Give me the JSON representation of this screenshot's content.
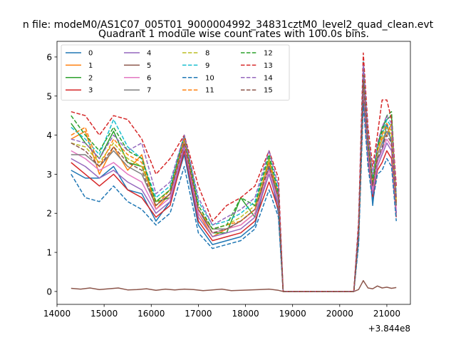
{
  "figure": {
    "suptitle": "n file: modeM0/AS1C07_005T01_9000004992_34831cztM0_level2_quad_clean.evt",
    "title": "Quadrant 1 module wise count rates with 100.0s bins.",
    "x_offset_text": "+3.844e8"
  },
  "chart_data": {
    "type": "line",
    "title": "Quadrant 1 module wise count rates with 100.0s bins.",
    "xlabel": "",
    "ylabel": "",
    "x_offset": 384400000,
    "xlim": [
      14000,
      21500
    ],
    "ylim": [
      -0.33,
      6.4
    ],
    "xticks": [
      14000,
      15000,
      16000,
      17000,
      18000,
      19000,
      20000,
      21000
    ],
    "yticks": [
      0,
      1,
      2,
      3,
      4,
      5,
      6
    ],
    "grid": false,
    "legend_position": "top-left",
    "legend_columns": 4,
    "series": [
      {
        "name": "0",
        "color": "#1f77b4",
        "dash": "solid",
        "x": [
          14300,
          14600,
          14900,
          15200,
          15500,
          15800,
          16100,
          16400,
          16700,
          17000,
          17300,
          17600,
          17900,
          18200,
          18500,
          18700,
          18800,
          19500,
          20300,
          20400,
          20500,
          20600,
          20700,
          20800,
          20900,
          21000,
          21100,
          21200
        ],
        "y": [
          3.1,
          2.9,
          2.9,
          3.2,
          2.6,
          2.5,
          1.8,
          2.3,
          3.5,
          1.7,
          1.2,
          1.3,
          1.4,
          1.7,
          3.2,
          2.0,
          0.0,
          0.0,
          0.0,
          1.3,
          5.5,
          3.7,
          2.2,
          3.4,
          3.6,
          4.3,
          3.8,
          2.0
        ]
      },
      {
        "name": "1",
        "color": "#ff7f0e",
        "dash": "solid",
        "x": [
          14300,
          14600,
          14900,
          15200,
          15500,
          15800,
          16100,
          16400,
          16700,
          17000,
          17300,
          17600,
          17900,
          18200,
          18500,
          18700,
          18800,
          19500,
          20300,
          20400,
          20500,
          20600,
          20700,
          20800,
          20900,
          21000,
          21100,
          21200
        ],
        "y": [
          3.9,
          4.1,
          3.0,
          3.7,
          3.1,
          3.5,
          2.1,
          2.5,
          3.8,
          2.0,
          1.4,
          1.6,
          1.7,
          2.0,
          3.1,
          2.4,
          0.0,
          0.0,
          0.0,
          1.4,
          5.0,
          4.0,
          2.8,
          3.6,
          3.9,
          4.0,
          4.3,
          2.4
        ]
      },
      {
        "name": "2",
        "color": "#2ca02c",
        "dash": "solid",
        "x": [
          14300,
          14600,
          14900,
          15200,
          15500,
          15800,
          16100,
          16400,
          16700,
          17000,
          17300,
          17600,
          17900,
          18200,
          18500,
          18700,
          18800,
          19500,
          20300,
          20400,
          20500,
          20600,
          20700,
          20800,
          20900,
          21000,
          21100,
          21200
        ],
        "y": [
          4.3,
          3.8,
          3.4,
          4.1,
          3.3,
          3.2,
          2.3,
          2.4,
          3.9,
          2.1,
          1.5,
          1.5,
          2.4,
          1.9,
          3.4,
          2.2,
          0.0,
          0.0,
          0.0,
          1.5,
          5.3,
          3.6,
          2.6,
          3.7,
          4.2,
          4.4,
          4.5,
          2.2
        ]
      },
      {
        "name": "3",
        "color": "#d62728",
        "dash": "solid",
        "x": [
          14300,
          14600,
          14900,
          15200,
          15500,
          15800,
          16100,
          16400,
          16700,
          17000,
          17300,
          17600,
          17900,
          18200,
          18500,
          18700,
          18800,
          19500,
          20300,
          20400,
          20500,
          20600,
          20700,
          20800,
          20900,
          21000,
          21100,
          21200
        ],
        "y": [
          3.3,
          3.0,
          2.7,
          3.0,
          2.6,
          2.4,
          1.9,
          2.2,
          3.6,
          1.8,
          1.3,
          1.4,
          1.5,
          1.8,
          2.8,
          2.1,
          0.0,
          0.0,
          0.0,
          1.4,
          5.0,
          3.4,
          2.4,
          3.1,
          3.3,
          3.6,
          3.4,
          1.9
        ]
      },
      {
        "name": "4",
        "color": "#9467bd",
        "dash": "solid",
        "x": [
          14300,
          14600,
          14900,
          15200,
          15500,
          15800,
          16100,
          16400,
          16700,
          17000,
          17300,
          17600,
          17900,
          18200,
          18500,
          18700,
          18800,
          19500,
          20300,
          20400,
          20500,
          20600,
          20700,
          20800,
          20900,
          21000,
          21100,
          21200
        ],
        "y": [
          3.4,
          3.2,
          2.9,
          3.1,
          2.8,
          2.6,
          2.0,
          2.3,
          3.7,
          1.9,
          1.4,
          1.5,
          1.6,
          1.9,
          3.0,
          2.2,
          0.0,
          0.0,
          0.0,
          1.4,
          5.2,
          3.5,
          2.5,
          3.2,
          3.5,
          3.8,
          3.6,
          2.0
        ]
      },
      {
        "name": "5",
        "color": "#8c564b",
        "dash": "solid",
        "x": [
          14300,
          14500,
          14700,
          14900,
          15100,
          15300,
          15500,
          15700,
          15900,
          16100,
          16300,
          16500,
          16700,
          16900,
          17100,
          17300,
          17500,
          17700,
          17900,
          18100,
          18300,
          18500,
          18700,
          18800,
          19500,
          20300,
          20400,
          20500,
          20600,
          20700,
          20800,
          20900,
          21000,
          21100,
          21200
        ],
        "y": [
          0.08,
          0.06,
          0.09,
          0.05,
          0.07,
          0.09,
          0.04,
          0.05,
          0.07,
          0.03,
          0.06,
          0.04,
          0.06,
          0.05,
          0.02,
          0.04,
          0.06,
          0.02,
          0.03,
          0.04,
          0.05,
          0.06,
          0.03,
          0.0,
          0.0,
          0.0,
          0.05,
          0.28,
          0.09,
          0.07,
          0.14,
          0.09,
          0.11,
          0.08,
          0.1
        ]
      },
      {
        "name": "6",
        "color": "#e377c2",
        "dash": "solid",
        "x": [
          14300,
          14600,
          14900,
          15200,
          15500,
          15800,
          16100,
          16400,
          16700,
          17000,
          17300,
          17600,
          17900,
          18200,
          18500,
          18700,
          18800,
          19500,
          20300,
          20400,
          20500,
          20600,
          20700,
          20800,
          20900,
          21000,
          21100,
          21200
        ],
        "y": [
          3.6,
          3.4,
          3.1,
          3.3,
          3.0,
          2.8,
          2.1,
          2.4,
          3.8,
          2.0,
          1.5,
          1.6,
          1.7,
          2.0,
          3.1,
          2.3,
          0.0,
          0.0,
          0.0,
          1.5,
          5.4,
          3.6,
          2.6,
          3.3,
          3.6,
          3.9,
          3.7,
          2.1
        ]
      },
      {
        "name": "7",
        "color": "#7f7f7f",
        "dash": "solid",
        "x": [
          14300,
          14600,
          14900,
          15200,
          15500,
          15800,
          16100,
          16400,
          16700,
          17000,
          17300,
          17600,
          17900,
          18200,
          18500,
          18700,
          18800,
          19500,
          20300,
          20400,
          20500,
          20600,
          20700,
          20800,
          20900,
          21000,
          21100,
          21200
        ],
        "y": [
          3.5,
          3.5,
          3.2,
          3.6,
          3.2,
          3.0,
          2.2,
          2.5,
          3.9,
          2.1,
          1.6,
          1.6,
          1.8,
          2.1,
          3.3,
          2.4,
          0.0,
          0.0,
          0.0,
          1.5,
          5.6,
          3.7,
          2.7,
          3.5,
          3.8,
          4.1,
          3.9,
          2.2
        ]
      },
      {
        "name": "8",
        "color": "#bcbd22",
        "dash": "dashed",
        "x": [
          14300,
          14600,
          14900,
          15200,
          15500,
          15800,
          16100,
          16400,
          16700,
          17000,
          17300,
          17600,
          17900,
          18200,
          18500,
          18700,
          18800,
          19500,
          20300,
          20400,
          20500,
          20600,
          20700,
          20800,
          20900,
          21000,
          21100,
          21200
        ],
        "y": [
          3.8,
          3.7,
          3.3,
          3.8,
          3.4,
          3.2,
          2.3,
          2.6,
          3.9,
          2.2,
          1.6,
          1.7,
          1.9,
          2.2,
          3.4,
          2.5,
          0.0,
          0.0,
          0.0,
          1.6,
          5.7,
          3.9,
          2.8,
          3.6,
          3.9,
          4.2,
          4.0,
          2.3
        ]
      },
      {
        "name": "9",
        "color": "#17becf",
        "dash": "dashed",
        "x": [
          14300,
          14600,
          14900,
          15200,
          15500,
          15800,
          16100,
          16400,
          16700,
          17000,
          17300,
          17600,
          17900,
          18200,
          18500,
          18700,
          18800,
          19500,
          20300,
          20400,
          20500,
          20600,
          20700,
          20800,
          20900,
          21000,
          21100,
          21200
        ],
        "y": [
          4.2,
          3.9,
          3.5,
          4.4,
          3.7,
          3.4,
          2.4,
          2.7,
          4.0,
          2.3,
          1.7,
          1.8,
          2.0,
          2.3,
          3.5,
          2.6,
          0.0,
          0.0,
          0.0,
          1.7,
          5.9,
          4.0,
          2.9,
          3.7,
          4.0,
          4.4,
          4.2,
          2.5
        ]
      },
      {
        "name": "10",
        "color": "#1f77b4",
        "dash": "dashed",
        "x": [
          14300,
          14600,
          14900,
          15200,
          15500,
          15800,
          16100,
          16400,
          16700,
          17000,
          17300,
          17600,
          17900,
          18200,
          18500,
          18700,
          18800,
          19500,
          20300,
          20400,
          20500,
          20600,
          20700,
          20800,
          20900,
          21000,
          21100,
          21200
        ],
        "y": [
          3.0,
          2.4,
          2.3,
          2.7,
          2.3,
          2.1,
          1.7,
          2.0,
          3.2,
          1.5,
          1.1,
          1.2,
          1.3,
          1.6,
          2.6,
          1.9,
          0.0,
          0.0,
          0.0,
          1.2,
          4.8,
          3.2,
          2.3,
          3.0,
          3.1,
          3.4,
          3.2,
          1.8
        ]
      },
      {
        "name": "11",
        "color": "#ff7f0e",
        "dash": "dashed",
        "x": [
          14300,
          14600,
          14900,
          15200,
          15500,
          15800,
          16100,
          16400,
          16700,
          17000,
          17300,
          17600,
          17900,
          18200,
          18500,
          18700,
          18800,
          19500,
          20300,
          20400,
          20500,
          20600,
          20700,
          20800,
          20900,
          21000,
          21100,
          21200
        ],
        "y": [
          4.0,
          4.2,
          3.2,
          3.9,
          3.5,
          3.3,
          2.2,
          2.6,
          3.9,
          2.1,
          1.6,
          1.7,
          1.8,
          2.1,
          3.3,
          2.5,
          0.0,
          0.0,
          0.0,
          1.6,
          5.5,
          3.8,
          2.8,
          3.6,
          4.0,
          4.3,
          4.1,
          2.3
        ]
      },
      {
        "name": "12",
        "color": "#2ca02c",
        "dash": "dashed",
        "x": [
          14300,
          14600,
          14900,
          15200,
          15500,
          15800,
          16100,
          16400,
          16700,
          17000,
          17300,
          17600,
          17900,
          18200,
          18500,
          18700,
          18800,
          19500,
          20300,
          20400,
          20500,
          20600,
          20700,
          20800,
          20900,
          21000,
          21100,
          21200
        ],
        "y": [
          4.5,
          4.0,
          3.6,
          4.2,
          3.6,
          3.4,
          2.3,
          2.6,
          4.0,
          2.2,
          1.6,
          1.7,
          2.4,
          2.2,
          3.5,
          2.5,
          0.0,
          0.0,
          0.0,
          1.6,
          5.6,
          3.8,
          2.8,
          3.7,
          4.1,
          4.5,
          4.6,
          2.4
        ]
      },
      {
        "name": "13",
        "color": "#d62728",
        "dash": "dashed",
        "x": [
          14300,
          14600,
          14900,
          15200,
          15500,
          15800,
          16100,
          16400,
          16700,
          17000,
          17300,
          17600,
          17900,
          18200,
          18500,
          18700,
          18800,
          19500,
          20300,
          20400,
          20500,
          20600,
          20700,
          20800,
          20900,
          21000,
          21100,
          21200
        ],
        "y": [
          4.6,
          4.5,
          4.0,
          4.5,
          4.4,
          3.9,
          3.0,
          3.4,
          4.0,
          2.7,
          1.8,
          2.2,
          2.4,
          2.7,
          3.6,
          2.9,
          0.0,
          0.0,
          0.0,
          1.8,
          6.1,
          4.2,
          3.2,
          4.0,
          4.9,
          4.9,
          4.4,
          2.7
        ]
      },
      {
        "name": "14",
        "color": "#9467bd",
        "dash": "dashed",
        "x": [
          14300,
          14600,
          14900,
          15200,
          15500,
          15800,
          16100,
          16400,
          16700,
          17000,
          17300,
          17600,
          17900,
          18200,
          18500,
          18700,
          18800,
          19500,
          20300,
          20400,
          20500,
          20600,
          20700,
          20800,
          20900,
          21000,
          21100,
          21200
        ],
        "y": [
          3.9,
          3.8,
          3.4,
          4.0,
          3.6,
          3.8,
          2.5,
          2.8,
          4.0,
          2.4,
          1.7,
          1.9,
          2.1,
          2.4,
          3.6,
          2.7,
          0.0,
          0.0,
          0.0,
          1.7,
          5.8,
          4.0,
          3.0,
          3.8,
          4.2,
          4.5,
          4.3,
          2.4
        ]
      },
      {
        "name": "15",
        "color": "#8c564b",
        "dash": "dashed",
        "x": [
          14300,
          14600,
          14900,
          15200,
          15500,
          15800,
          16100,
          16400,
          16700,
          17000,
          17300,
          17600,
          17900,
          18200,
          18500,
          18700,
          18800,
          19500,
          20300,
          20400,
          20500,
          20600,
          20700,
          20800,
          20900,
          21000,
          21100,
          21200
        ],
        "y": [
          3.8,
          3.6,
          3.2,
          3.7,
          3.3,
          3.1,
          2.2,
          2.5,
          3.8,
          2.1,
          1.5,
          1.6,
          1.8,
          2.1,
          3.2,
          2.4,
          0.0,
          0.0,
          0.0,
          1.5,
          5.4,
          3.7,
          2.7,
          3.4,
          3.7,
          4.0,
          3.8,
          2.2
        ]
      }
    ]
  }
}
